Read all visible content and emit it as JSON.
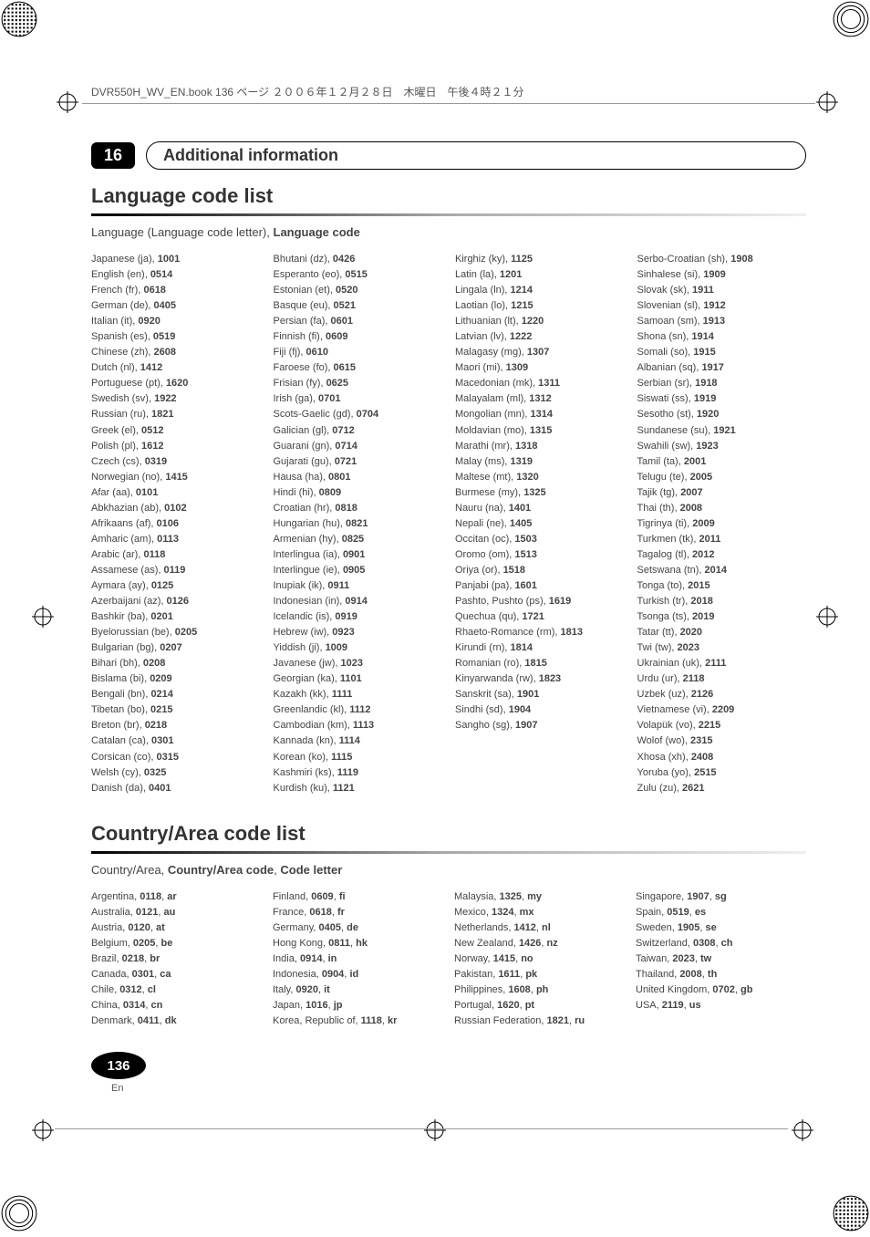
{
  "print_header": "DVR550H_WV_EN.book 136 ページ ２００６年１２月２８日　木曜日　午後４時２１分",
  "chapter_num": "16",
  "chapter_title": "Additional information",
  "section1_title": "Language code list",
  "section1_sub_prefix": "Language (Language code letter), ",
  "section1_sub_bold": "Language code",
  "lang_cols": [
    [
      [
        "Japanese (ja), ",
        "1001"
      ],
      [
        "English (en), ",
        "0514"
      ],
      [
        "French (fr), ",
        "0618"
      ],
      [
        "German (de), ",
        "0405"
      ],
      [
        "Italian (it), ",
        "0920"
      ],
      [
        "Spanish (es), ",
        "0519"
      ],
      [
        "Chinese (zh), ",
        "2608"
      ],
      [
        "Dutch (nl), ",
        "1412"
      ],
      [
        "Portuguese (pt), ",
        "1620"
      ],
      [
        "Swedish (sv), ",
        "1922"
      ],
      [
        "Russian (ru), ",
        "1821"
      ],
      [
        "Greek (el), ",
        "0512"
      ],
      [
        "Polish (pl), ",
        "1612"
      ],
      [
        "Czech (cs), ",
        "0319"
      ],
      [
        "Norwegian (no), ",
        "1415"
      ],
      [
        "Afar (aa), ",
        "0101"
      ],
      [
        "Abkhazian (ab), ",
        "0102"
      ],
      [
        "Afrikaans (af), ",
        "0106"
      ],
      [
        "Amharic (am), ",
        "0113"
      ],
      [
        "Arabic (ar), ",
        "0118"
      ],
      [
        "Assamese (as), ",
        "0119"
      ],
      [
        "Aymara (ay), ",
        "0125"
      ],
      [
        "Azerbaijani (az), ",
        "0126"
      ],
      [
        "Bashkir (ba), ",
        "0201"
      ],
      [
        "Byelorussian (be), ",
        "0205"
      ],
      [
        "Bulgarian (bg), ",
        "0207"
      ],
      [
        "Bihari (bh), ",
        "0208"
      ],
      [
        "Bislama (bi), ",
        "0209"
      ],
      [
        "Bengali (bn), ",
        "0214"
      ],
      [
        "Tibetan (bo), ",
        "0215"
      ],
      [
        "Breton (br), ",
        "0218"
      ],
      [
        "Catalan (ca), ",
        "0301"
      ],
      [
        "Corsican (co), ",
        "0315"
      ],
      [
        "Welsh (cy), ",
        "0325"
      ],
      [
        "Danish (da), ",
        "0401"
      ]
    ],
    [
      [
        "Bhutani (dz), ",
        "0426"
      ],
      [
        "Esperanto (eo), ",
        "0515"
      ],
      [
        "Estonian (et), ",
        "0520"
      ],
      [
        "Basque (eu), ",
        "0521"
      ],
      [
        "Persian (fa), ",
        "0601"
      ],
      [
        "Finnish (fi), ",
        "0609"
      ],
      [
        "Fiji (fj), ",
        "0610"
      ],
      [
        "Faroese (fo), ",
        "0615"
      ],
      [
        "Frisian (fy), ",
        "0625"
      ],
      [
        "Irish (ga), ",
        "0701"
      ],
      [
        "Scots-Gaelic (gd), ",
        "0704"
      ],
      [
        "Galician (gl), ",
        "0712"
      ],
      [
        "Guarani (gn), ",
        "0714"
      ],
      [
        "Gujarati (gu), ",
        "0721"
      ],
      [
        "Hausa (ha), ",
        "0801"
      ],
      [
        "Hindi (hi), ",
        "0809"
      ],
      [
        "Croatian (hr), ",
        "0818"
      ],
      [
        "Hungarian (hu), ",
        "0821"
      ],
      [
        "Armenian (hy), ",
        "0825"
      ],
      [
        "Interlingua (ia), ",
        "0901"
      ],
      [
        "Interlingue (ie), ",
        "0905"
      ],
      [
        "Inupiak (ik), ",
        "0911"
      ],
      [
        "Indonesian (in), ",
        "0914"
      ],
      [
        "Icelandic (is), ",
        "0919"
      ],
      [
        "Hebrew (iw), ",
        "0923"
      ],
      [
        "Yiddish (ji), ",
        "1009"
      ],
      [
        "Javanese (jw), ",
        "1023"
      ],
      [
        "Georgian (ka), ",
        "1101"
      ],
      [
        "Kazakh (kk), ",
        "1111"
      ],
      [
        "Greenlandic (kl), ",
        "1112"
      ],
      [
        "Cambodian (km), ",
        "1113"
      ],
      [
        "Kannada (kn), ",
        "1114"
      ],
      [
        "Korean (ko), ",
        "1115"
      ],
      [
        "Kashmiri (ks), ",
        "1119"
      ],
      [
        "Kurdish (ku), ",
        "1121"
      ]
    ],
    [
      [
        "Kirghiz (ky), ",
        "1125"
      ],
      [
        "Latin (la), ",
        "1201"
      ],
      [
        "Lingala (ln), ",
        "1214"
      ],
      [
        "Laotian (lo), ",
        "1215"
      ],
      [
        "Lithuanian (lt), ",
        "1220"
      ],
      [
        "Latvian (lv), ",
        "1222"
      ],
      [
        "Malagasy (mg), ",
        "1307"
      ],
      [
        "Maori (mi), ",
        "1309"
      ],
      [
        "Macedonian (mk), ",
        "1311"
      ],
      [
        "Malayalam (ml), ",
        "1312"
      ],
      [
        "Mongolian (mn), ",
        "1314"
      ],
      [
        "Moldavian (mo), ",
        "1315"
      ],
      [
        "Marathi (mr), ",
        "1318"
      ],
      [
        "Malay (ms), ",
        "1319"
      ],
      [
        "Maltese (mt), ",
        "1320"
      ],
      [
        "Burmese (my), ",
        "1325"
      ],
      [
        "Nauru (na), ",
        "1401"
      ],
      [
        "Nepali (ne), ",
        "1405"
      ],
      [
        "Occitan (oc), ",
        "1503"
      ],
      [
        "Oromo (om), ",
        "1513"
      ],
      [
        "Oriya (or), ",
        "1518"
      ],
      [
        "Panjabi (pa), ",
        "1601"
      ],
      [
        "Pashto, Pushto (ps), ",
        "1619"
      ],
      [
        "Quechua (qu), ",
        "1721"
      ],
      [
        "Rhaeto-Romance (rm), ",
        "1813"
      ],
      [
        "Kirundi (rn), ",
        "1814"
      ],
      [
        "Romanian (ro), ",
        "1815"
      ],
      [
        "Kinyarwanda (rw), ",
        "1823"
      ],
      [
        "Sanskrit (sa), ",
        "1901"
      ],
      [
        "Sindhi (sd), ",
        "1904"
      ],
      [
        "Sangho (sg), ",
        "1907"
      ]
    ],
    [
      [
        "Serbo-Croatian (sh), ",
        "1908"
      ],
      [
        "Sinhalese (si), ",
        "1909"
      ],
      [
        "Slovak (sk), ",
        "1911"
      ],
      [
        "Slovenian (sl), ",
        "1912"
      ],
      [
        "Samoan (sm), ",
        "1913"
      ],
      [
        "Shona (sn), ",
        "1914"
      ],
      [
        "Somali (so), ",
        "1915"
      ],
      [
        "Albanian (sq), ",
        "1917"
      ],
      [
        "Serbian (sr), ",
        "1918"
      ],
      [
        "Siswati (ss), ",
        "1919"
      ],
      [
        "Sesotho (st), ",
        "1920"
      ],
      [
        "Sundanese (su), ",
        "1921"
      ],
      [
        "Swahili (sw), ",
        "1923"
      ],
      [
        "Tamil (ta), ",
        "2001"
      ],
      [
        "Telugu (te), ",
        "2005"
      ],
      [
        "Tajik (tg), ",
        "2007"
      ],
      [
        "Thai (th), ",
        "2008"
      ],
      [
        "Tigrinya (ti), ",
        "2009"
      ],
      [
        "Turkmen (tk), ",
        "2011"
      ],
      [
        "Tagalog (tl), ",
        "2012"
      ],
      [
        "Setswana (tn), ",
        "2014"
      ],
      [
        "Tonga (to), ",
        "2015"
      ],
      [
        "Turkish (tr), ",
        "2018"
      ],
      [
        "Tsonga (ts), ",
        "2019"
      ],
      [
        "Tatar (tt), ",
        "2020"
      ],
      [
        "Twi (tw), ",
        "2023"
      ],
      [
        "Ukrainian (uk), ",
        "2111"
      ],
      [
        "Urdu (ur), ",
        "2118"
      ],
      [
        "Uzbek (uz), ",
        "2126"
      ],
      [
        "Vietnamese (vi), ",
        "2209"
      ],
      [
        "Volapük (vo), ",
        "2215"
      ],
      [
        "Wolof (wo), ",
        "2315"
      ],
      [
        "Xhosa (xh), ",
        "2408"
      ],
      [
        "Yoruba (yo), ",
        "2515"
      ],
      [
        "Zulu (zu), ",
        "2621"
      ]
    ]
  ],
  "section2_title": "Country/Area code list",
  "section2_sub_prefix": "Country/Area, ",
  "section2_sub_bold1": "Country/Area code",
  "section2_sub_sep": ", ",
  "section2_sub_bold2": "Code letter",
  "country_cols": [
    [
      [
        "Argentina, ",
        "0118",
        ", ",
        "ar"
      ],
      [
        "Australia, ",
        "0121",
        ", ",
        "au"
      ],
      [
        "Austria, ",
        "0120",
        ", ",
        "at"
      ],
      [
        "Belgium, ",
        "0205",
        ", ",
        "be"
      ],
      [
        "Brazil, ",
        "0218",
        ", ",
        "br"
      ],
      [
        "Canada, ",
        "0301",
        ", ",
        "ca"
      ],
      [
        "Chile, ",
        "0312",
        ", ",
        "cl"
      ],
      [
        "China, ",
        "0314",
        ", ",
        "cn"
      ],
      [
        "Denmark, ",
        "0411",
        ", ",
        "dk"
      ]
    ],
    [
      [
        "Finland, ",
        "0609",
        ", ",
        "fi"
      ],
      [
        "France, ",
        "0618",
        ", ",
        "fr"
      ],
      [
        "Germany, ",
        "0405",
        ", ",
        "de"
      ],
      [
        "Hong Kong, ",
        "0811",
        ", ",
        "hk"
      ],
      [
        "India, ",
        "0914",
        ", ",
        "in"
      ],
      [
        "Indonesia, ",
        "0904",
        ", ",
        "id"
      ],
      [
        "Italy, ",
        "0920",
        ", ",
        "it"
      ],
      [
        "Japan, ",
        "1016",
        ", ",
        "jp"
      ],
      [
        "Korea, Republic of, ",
        "1118",
        ", ",
        "kr"
      ]
    ],
    [
      [
        "Malaysia, ",
        "1325",
        ", ",
        "my"
      ],
      [
        "Mexico, ",
        "1324",
        ", ",
        "mx"
      ],
      [
        "Netherlands, ",
        "1412",
        ", ",
        "nl"
      ],
      [
        "New Zealand, ",
        "1426",
        ", ",
        "nz"
      ],
      [
        "Norway, ",
        "1415",
        ", ",
        "no"
      ],
      [
        "Pakistan, ",
        "1611",
        ", ",
        "pk"
      ],
      [
        "Philippines, ",
        "1608",
        ", ",
        "ph"
      ],
      [
        "Portugal, ",
        "1620",
        ", ",
        "pt"
      ],
      [
        "Russian Federation, ",
        "1821",
        ", ",
        "ru"
      ]
    ],
    [
      [
        "Singapore, ",
        "1907",
        ", ",
        "sg"
      ],
      [
        "Spain, ",
        "0519",
        ", ",
        "es"
      ],
      [
        "Sweden, ",
        "1905",
        ", ",
        "se"
      ],
      [
        "Switzerland, ",
        "0308",
        ", ",
        "ch"
      ],
      [
        "Taiwan, ",
        "2023",
        ", ",
        "tw"
      ],
      [
        "Thailand, ",
        "2008",
        ", ",
        "th"
      ],
      [
        "United Kingdom, ",
        "0702",
        ", ",
        "gb"
      ],
      [
        "USA, ",
        "2119",
        ", ",
        "us"
      ]
    ]
  ],
  "page_num": "136",
  "page_lang": "En"
}
